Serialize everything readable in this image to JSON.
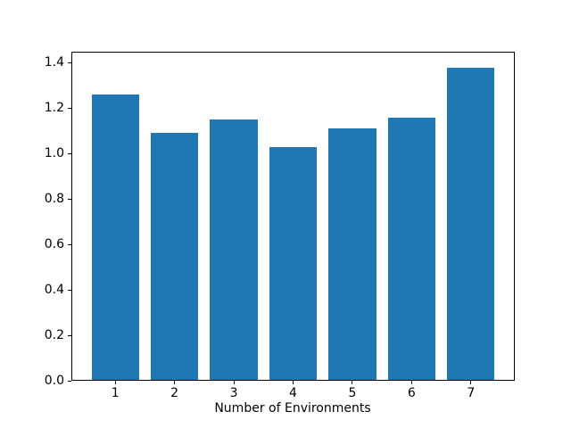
{
  "chart_data": {
    "type": "bar",
    "title": "",
    "xlabel": "Number of Environments",
    "ylabel": "",
    "categories": [
      "1",
      "2",
      "3",
      "4",
      "5",
      "6",
      "7"
    ],
    "values": [
      1.26,
      1.09,
      1.15,
      1.03,
      1.11,
      1.16,
      1.38
    ],
    "yticks": [
      0.0,
      0.2,
      0.4,
      0.6,
      0.8,
      1.0,
      1.2,
      1.4
    ],
    "ytick_decimals": 1,
    "ylim": [
      0,
      1.449
    ],
    "xlim": [
      0.26,
      7.74
    ],
    "bar_width_units": 0.8,
    "bar_color": "#1f77b4",
    "axis_color": "#000000",
    "background_color": "#ffffff",
    "grid": false,
    "legend": "none"
  }
}
